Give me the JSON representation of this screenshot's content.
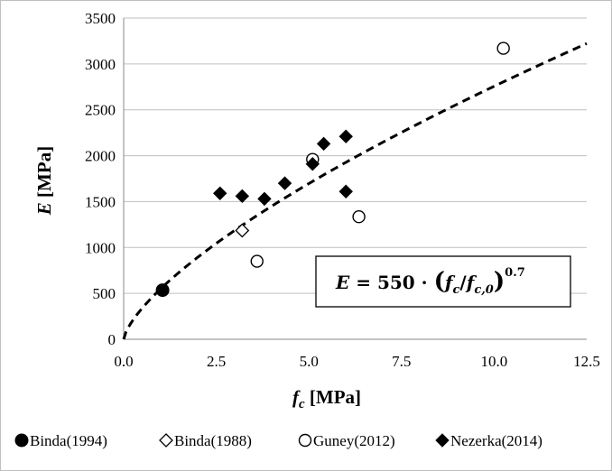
{
  "chart_data": {
    "type": "scatter",
    "xlabel": "f_c [MPa]",
    "ylabel": "E [MPa]",
    "xlim": [
      0,
      12.5
    ],
    "ylim": [
      0,
      3500
    ],
    "x_ticks": [
      "0.0",
      "2.5",
      "5.0",
      "7.5",
      "10.0",
      "12.5"
    ],
    "y_ticks": [
      "0",
      "500",
      "1000",
      "1500",
      "2000",
      "2500",
      "3000",
      "3500"
    ],
    "grid": "horizontal",
    "legend_position": "bottom",
    "series": [
      {
        "name": "Binda(1994)",
        "marker": "filled-circle",
        "points": [
          {
            "x": 1.05,
            "y": 535
          }
        ]
      },
      {
        "name": "Binda(1988)",
        "marker": "open-diamond",
        "points": [
          {
            "x": 3.2,
            "y": 1185
          }
        ]
      },
      {
        "name": "Guney(2012)",
        "marker": "open-circle",
        "points": [
          {
            "x": 3.6,
            "y": 850
          },
          {
            "x": 5.1,
            "y": 1960
          },
          {
            "x": 6.35,
            "y": 1335
          },
          {
            "x": 10.25,
            "y": 3170
          }
        ]
      },
      {
        "name": "Nezerka(2014)",
        "marker": "filled-diamond",
        "points": [
          {
            "x": 2.6,
            "y": 1590
          },
          {
            "x": 3.2,
            "y": 1560
          },
          {
            "x": 3.8,
            "y": 1530
          },
          {
            "x": 4.35,
            "y": 1700
          },
          {
            "x": 5.1,
            "y": 1910
          },
          {
            "x": 5.4,
            "y": 2130
          },
          {
            "x": 6.0,
            "y": 2210
          },
          {
            "x": 6.0,
            "y": 1610
          }
        ]
      }
    ],
    "fit_curve": {
      "style": "dashed",
      "coefficient": 550,
      "exponent": 0.7,
      "equation_label": {
        "lhs": "E",
        "equals": " = ",
        "coef": "550",
        "dot": " · ",
        "paren_open": "(",
        "f": "f",
        "sub_c": "c",
        "slash": "/",
        "f2": "f",
        "sub_c0": "c,0",
        "paren_close": ")",
        "power": "0.7"
      }
    }
  }
}
